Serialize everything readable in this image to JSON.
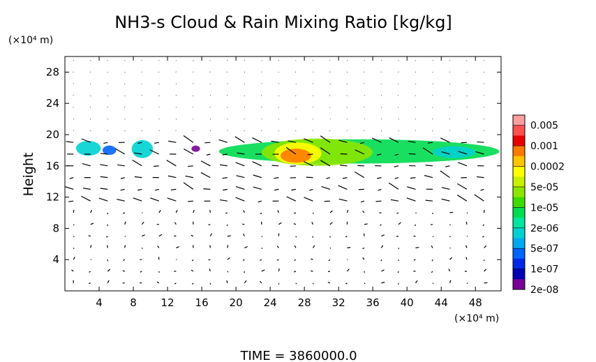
{
  "chart_data": {
    "type": "heatmap",
    "title": "NH3-s Cloud & Rain Mixing Ratio [kg/kg]",
    "ylabel": "Height",
    "xunit": "(×10⁴ m)",
    "yunit": "(×10⁴ m)",
    "time_label": "TIME  =  3860000.0",
    "xlim": [
      0,
      51
    ],
    "ylim": [
      0,
      30
    ],
    "xticks": [
      "4",
      "8",
      "12",
      "16",
      "20",
      "24",
      "28",
      "32",
      "36",
      "40",
      "44",
      "48"
    ],
    "xtick_values": [
      4,
      8,
      12,
      16,
      20,
      24,
      28,
      32,
      36,
      40,
      44,
      48
    ],
    "yticks": [
      "4",
      "8",
      "12",
      "16",
      "20",
      "24",
      "28"
    ],
    "ytick_values": [
      4,
      8,
      12,
      16,
      20,
      24,
      28
    ],
    "colorbar": {
      "labels": [
        "0.005",
        "0.001",
        "0.0002",
        "5e-05",
        "1e-05",
        "2e-06",
        "5e-07",
        "1e-07",
        "2e-08"
      ],
      "colors": [
        "#ff9e9e",
        "#ff5050",
        "#e60000",
        "#ff7a00",
        "#ffc400",
        "#ffff00",
        "#c8f000",
        "#8ce600",
        "#3cdc00",
        "#00dc50",
        "#00e6a0",
        "#00d2d2",
        "#00aaf0",
        "#0064ff",
        "#0028e6",
        "#0000b4",
        "#780096"
      ]
    },
    "cloud_regions": [
      {
        "x": [
          1.3,
          4.2
        ],
        "y": [
          17.3,
          19.2
        ],
        "level": "2e-06"
      },
      {
        "x": [
          4.4,
          6.0
        ],
        "y": [
          17.4,
          18.6
        ],
        "level": "5e-07"
      },
      {
        "x": [
          7.8,
          10.3
        ],
        "y": [
          17.0,
          19.3
        ],
        "level": "2e-06"
      },
      {
        "x": [
          14.8,
          15.8
        ],
        "y": [
          17.8,
          18.6
        ],
        "level": "2e-08"
      },
      {
        "x": [
          18.0,
          50.8
        ],
        "y": [
          16.3,
          19.4
        ],
        "level": "1e-05"
      },
      {
        "x": [
          23.0,
          36.0
        ],
        "y": [
          16.0,
          19.5
        ],
        "level": "5e-05"
      },
      {
        "x": [
          24.5,
          30.0
        ],
        "y": [
          16.2,
          19.0
        ],
        "level": "0.0002"
      },
      {
        "x": [
          25.2,
          28.8
        ],
        "y": [
          16.4,
          18.2
        ],
        "level": "0.001"
      },
      {
        "x": [
          43.0,
          48.0
        ],
        "y": [
          17.0,
          18.5
        ],
        "level": "2e-06"
      }
    ]
  }
}
